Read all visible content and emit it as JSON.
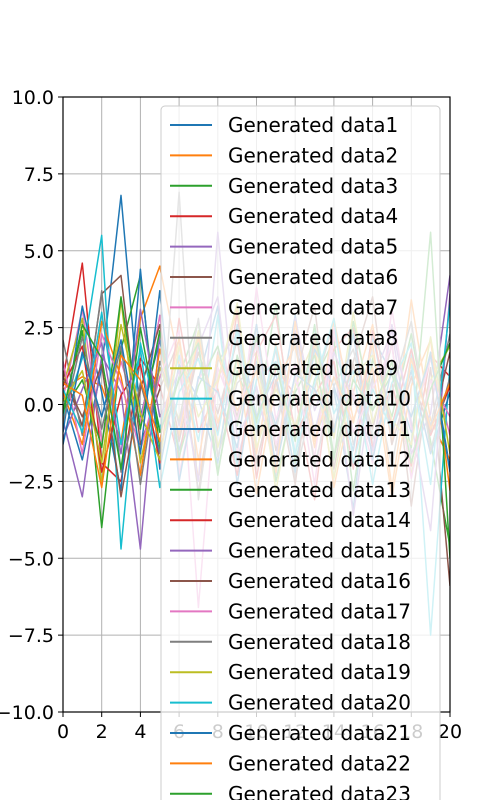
{
  "chart_data": {
    "type": "line",
    "title": "",
    "xlabel": "",
    "ylabel": "",
    "xlim": [
      0,
      20
    ],
    "ylim": [
      -10,
      10
    ],
    "grid": true,
    "legend_placement": "upper-right",
    "x_ticks": [
      "0",
      "2",
      "4",
      "6",
      "8",
      "10",
      "12",
      "14",
      "16",
      "18",
      "20"
    ],
    "y_ticks": [
      "10.0",
      "7.5",
      "5.0",
      "2.5",
      "0.0",
      "−2.5",
      "−5.0",
      "−7.5",
      "−10.0"
    ],
    "x_tick_values": [
      0,
      2,
      4,
      6,
      8,
      10,
      12,
      14,
      16,
      18,
      20
    ],
    "y_tick_values": [
      10,
      7.5,
      5,
      2.5,
      0,
      -2.5,
      -5,
      -7.5,
      -10
    ],
    "x": [
      0,
      1,
      2,
      3,
      4,
      5,
      6,
      7,
      8,
      9,
      10,
      11,
      12,
      13,
      14,
      15,
      16,
      17,
      18,
      19,
      20
    ],
    "palette": [
      "#1f77b4",
      "#ff7f0e",
      "#2ca02c",
      "#d62728",
      "#9467bd",
      "#8c564b",
      "#e377c2",
      "#7f7f7f",
      "#bcbd22",
      "#17becf"
    ],
    "series": [
      {
        "name": "Generated data1",
        "color": "#1f77b4",
        "values": [
          0.3,
          -1.8,
          1.2,
          6.8,
          -0.4,
          2.1,
          -1.5,
          0.8,
          3.2,
          -2.6,
          1.4,
          -0.7,
          2.9,
          -1.1,
          0.5,
          -3.4,
          2.2,
          1.0,
          -0.9,
          1.7,
          -2.1
        ]
      },
      {
        "name": "Generated data2",
        "color": "#ff7f0e",
        "values": [
          0.5,
          0.9,
          0.6,
          -1.2,
          2.8,
          4.5,
          1.3,
          -2.4,
          0.7,
          3.1,
          -1.6,
          2.0,
          -0.8,
          1.9,
          -2.7,
          0.4,
          2.6,
          -1.3,
          3.4,
          -0.5,
          -1.8
        ]
      },
      {
        "name": "Generated data3",
        "color": "#2ca02c",
        "values": [
          -0.2,
          2.4,
          -4.0,
          1.8,
          4.2,
          -1.5,
          0.9,
          2.7,
          -2.2,
          1.1,
          -0.6,
          3.3,
          -1.9,
          0.8,
          2.1,
          -2.8,
          1.5,
          -0.4,
          2.3,
          -1.2,
          -4.6
        ]
      },
      {
        "name": "Generated data4",
        "color": "#d62728",
        "values": [
          0.8,
          4.6,
          -1.9,
          -2.5,
          1.5,
          0.6,
          -1.8,
          2.2,
          -0.9,
          3.0,
          -2.4,
          1.2,
          0.3,
          -3.1,
          1.8,
          2.5,
          -1.4,
          0.7,
          -2.0,
          1.6,
          0.9
        ]
      },
      {
        "name": "Generated data5",
        "color": "#9467bd",
        "values": [
          -0.5,
          -3.0,
          1.6,
          0.4,
          -4.7,
          2.3,
          -0.7,
          1.9,
          3.5,
          -1.8,
          0.6,
          -2.3,
          2.8,
          -0.2,
          1.4,
          -3.6,
          0.8,
          2.4,
          -1.6,
          -0.3,
          4.2
        ]
      },
      {
        "name": "Generated data6",
        "color": "#8c564b",
        "values": [
          1.1,
          -0.7,
          3.6,
          4.2,
          -1.3,
          0.5,
          2.1,
          -2.9,
          1.7,
          -0.4,
          2.6,
          -1.5,
          0.9,
          3.2,
          -2.1,
          1.3,
          -0.8,
          2.0,
          -3.3,
          1.2,
          -5.9
        ]
      },
      {
        "name": "Generated data7",
        "color": "#e377c2",
        "values": [
          0.2,
          3.1,
          -1.2,
          1.4,
          -0.6,
          2.9,
          -2.3,
          0.8,
          1.9,
          -1.7,
          3.8,
          -0.5,
          1.3,
          -2.6,
          2.2,
          0.4,
          -1.9,
          3.1,
          -0.8,
          1.5,
          -1.0
        ]
      },
      {
        "name": "Generated data8",
        "color": "#7f7f7f",
        "values": [
          2.1,
          -1.0,
          3.7,
          -2.2,
          0.7,
          -1.6,
          6.9,
          -3.1,
          1.4,
          2.3,
          -0.9,
          1.8,
          -2.4,
          0.5,
          2.7,
          -1.3,
          0.9,
          -2.0,
          1.6,
          -0.7,
          2.3
        ]
      },
      {
        "name": "Generated data9",
        "color": "#bcbd22",
        "values": [
          0.6,
          2.8,
          -2.6,
          3.4,
          -1.9,
          1.2,
          -0.5,
          2.4,
          -1.4,
          0.9,
          1.7,
          -2.8,
          0.6,
          2.1,
          -1.1,
          3.0,
          -0.6,
          1.4,
          -2.3,
          0.8,
          1.9
        ]
      },
      {
        "name": "Generated data10",
        "color": "#17becf",
        "values": [
          -0.4,
          1.5,
          5.5,
          -4.7,
          2.0,
          -0.8,
          1.6,
          -1.2,
          2.9,
          -2.0,
          0.8,
          1.4,
          -1.7,
          2.5,
          -0.3,
          1.1,
          -2.6,
          0.7,
          2.0,
          -7.5,
          1.3
        ]
      },
      {
        "name": "Generated data11",
        "color": "#1f77b4",
        "values": [
          -0.9,
          3.2,
          0.4,
          -2.8,
          4.4,
          -2.1,
          1.3,
          0.2,
          -1.9,
          2.6,
          -0.4,
          1.0,
          -2.2,
          1.8,
          0.6,
          -1.5,
          2.3,
          -0.9,
          1.1,
          -1.6,
          0.4
        ]
      },
      {
        "name": "Generated data12",
        "color": "#ff7f0e",
        "values": [
          0.4,
          -1.3,
          2.7,
          0.9,
          -2.3,
          1.8,
          -1.0,
          2.2,
          -0.6,
          1.5,
          -2.9,
          0.7,
          1.9,
          -1.4,
          2.8,
          -0.5,
          1.2,
          -3.0,
          0.6,
          2.1,
          -2.8
        ]
      },
      {
        "name": "Generated data13",
        "color": "#2ca02c",
        "values": [
          -0.2,
          0.8,
          -1.4,
          3.5,
          -0.8,
          2.4,
          -1.7,
          0.6,
          1.9,
          -0.7,
          2.2,
          -2.5,
          0.4,
          1.6,
          -1.8,
          2.7,
          -0.2,
          1.0,
          -1.4,
          5.6,
          -5.0
        ]
      },
      {
        "name": "Generated data14",
        "color": "#d62728",
        "values": [
          0.6,
          1.9,
          -2.2,
          0.3,
          1.3,
          -1.9,
          2.8,
          -0.9,
          0.5,
          -2.3,
          1.7,
          2.9,
          -1.0,
          0.3,
          1.4,
          -2.1,
          2.4,
          -0.7,
          1.8,
          -1.0,
          0.6
        ]
      },
      {
        "name": "Generated data15",
        "color": "#9467bd",
        "values": [
          -1.1,
          0.5,
          2.0,
          -1.6,
          3.1,
          -0.4,
          1.1,
          -2.5,
          5.6,
          -1.1,
          0.3,
          -1.8,
          2.4,
          -0.9,
          1.7,
          0.2,
          -1.5,
          2.6,
          -0.6,
          -4.1,
          3.6
        ]
      },
      {
        "name": "Generated data16",
        "color": "#8c564b",
        "values": [
          0.9,
          -0.4,
          1.3,
          -3.0,
          0.5,
          2.6,
          -1.2,
          1.7,
          -0.3,
          2.1,
          -1.9,
          0.8,
          -2.6,
          2.3,
          -0.8,
          1.4,
          3.5,
          -1.3,
          0.9,
          -0.9,
          1.7
        ]
      },
      {
        "name": "Generated data17",
        "color": "#e377c2",
        "values": [
          1.4,
          -1.6,
          2.3,
          0.7,
          -1.5,
          0.9,
          2.4,
          -6.6,
          1.2,
          -0.5,
          2.0,
          -1.3,
          0.9,
          -1.7,
          2.5,
          -0.9,
          0.5,
          1.9,
          -2.4,
          0.8,
          -0.4
        ]
      },
      {
        "name": "Generated data18",
        "color": "#7f7f7f",
        "values": [
          -0.6,
          2.2,
          -0.8,
          1.9,
          -2.6,
          1.4,
          -0.6,
          2.8,
          -1.7,
          0.7,
          1.3,
          -0.9,
          2.2,
          -2.0,
          0.6,
          1.8,
          -1.1,
          0.4,
          2.7,
          -1.5,
          0.9
        ]
      },
      {
        "name": "Generated data19",
        "color": "#bcbd22",
        "values": [
          0.1,
          1.1,
          -1.9,
          2.6,
          -0.3,
          -1.8,
          1.9,
          -0.4,
          0.8,
          3.3,
          -1.4,
          0.5,
          -0.7,
          1.2,
          -2.4,
          0.9,
          1.6,
          -0.5,
          -1.3,
          2.2,
          -1.6
        ]
      },
      {
        "name": "Generated data20",
        "color": "#17becf",
        "values": [
          0.5,
          -0.9,
          3.0,
          -1.3,
          1.8,
          -2.7,
          0.4,
          1.5,
          -1.0,
          2.4,
          -0.8,
          1.9,
          -1.6,
          0.7,
          2.8,
          -1.9,
          0.5,
          -0.8,
          1.3,
          -2.6,
          3.3
        ]
      },
      {
        "name": "Generated data21",
        "color": "#1f77b4",
        "values": [
          -1.3,
          1.7,
          -0.4,
          2.1,
          -1.6,
          3.7,
          -2.5,
          0.9,
          0.4,
          -1.4,
          2.6,
          -2.1,
          1.0,
          0.5,
          -0.9,
          2.3,
          -1.8,
          1.2,
          -0.4,
          1.6,
          -2.2
        ]
      },
      {
        "name": "Generated data22",
        "color": "#ff7f0e",
        "values": [
          0.7,
          0.3,
          -2.7,
          1.6,
          0.8,
          -1.2,
          2.2,
          -1.8,
          1.6,
          -0.2,
          1.1,
          -2.2,
          2.7,
          -1.2,
          0.9,
          -0.6,
          2.0,
          -2.7,
          1.5,
          -0.8,
          0.7
        ]
      },
      {
        "name": "Generated data23",
        "color": "#2ca02c",
        "values": [
          -0.3,
          2.6,
          1.5,
          -2.1,
          2.5,
          -0.9,
          0.8,
          2.0,
          -2.3,
          1.6,
          -0.5,
          1.3,
          -1.2,
          2.6,
          -1.7,
          0.8,
          -0.2,
          1.4,
          -1.9,
          0.5,
          2.0
        ]
      }
    ]
  }
}
